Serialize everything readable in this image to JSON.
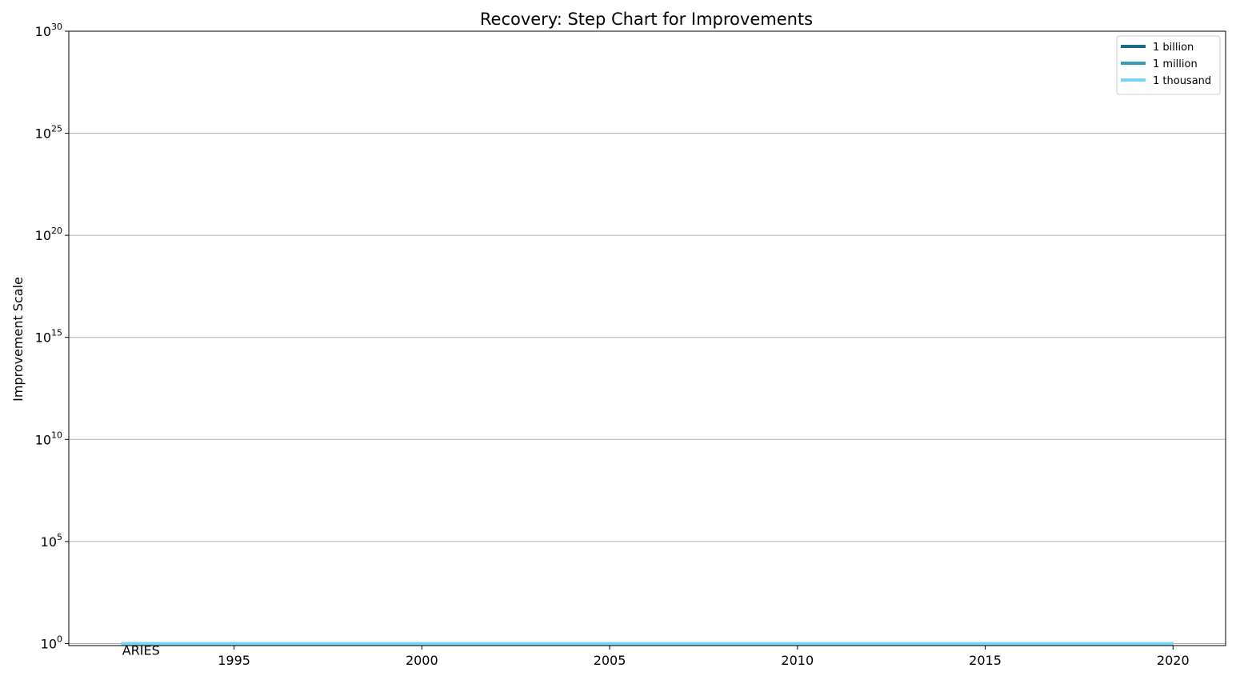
{
  "chart_data": {
    "type": "line",
    "title": "Recovery: Step Chart for Improvements",
    "xlabel": "",
    "ylabel": "Improvement Scale",
    "y_scale": "log",
    "xlim": [
      1990.6,
      2021.4
    ],
    "ylim_exponent": [
      -0.1,
      30
    ],
    "x_ticks": [
      "1995",
      "2000",
      "2005",
      "2010",
      "2015",
      "2020"
    ],
    "x_tick_values": [
      1995,
      2000,
      2005,
      2010,
      2015,
      2020
    ],
    "y_tick_exponents": [
      0,
      5,
      10,
      15,
      20,
      25,
      30
    ],
    "grid": "horizontal",
    "legend_position": "top-right",
    "series": [
      {
        "name": "1 billion",
        "color": "#1a6b8a",
        "points": [
          {
            "x": 1992,
            "y": 1
          },
          {
            "x": 2020,
            "y": 1
          }
        ]
      },
      {
        "name": "1 million",
        "color": "#3a9ab8",
        "points": [
          {
            "x": 1992,
            "y": 1
          },
          {
            "x": 2020,
            "y": 1
          }
        ]
      },
      {
        "name": "1 thousand",
        "color": "#7ad3f7",
        "points": [
          {
            "x": 1992,
            "y": 1
          },
          {
            "x": 2020,
            "y": 1
          }
        ]
      }
    ],
    "annotations": [
      {
        "text": "ARIES",
        "x": 1992,
        "y": 1
      }
    ]
  }
}
